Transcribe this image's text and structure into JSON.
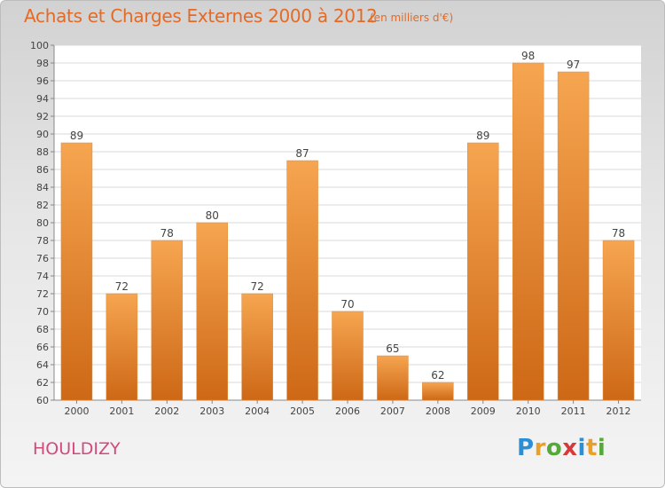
{
  "title": "Achats et Charges Externes 2000 à 2012",
  "subtitle": "(en milliers d'€)",
  "commune": "HOULDIZY",
  "logo": {
    "letters": [
      "P",
      "r",
      "o",
      "x",
      "i",
      "t",
      "i"
    ],
    "colors": [
      "#2a8fd6",
      "#e8a02b",
      "#57a83b",
      "#d63b3b",
      "#2a8fd6",
      "#e8a02b",
      "#57a83b"
    ]
  },
  "colors": {
    "bar_top": "#f6a550",
    "bar_bottom": "#cd6816",
    "accent": "#e46a26"
  },
  "chart_data": {
    "type": "bar",
    "categories": [
      "2000",
      "2001",
      "2002",
      "2003",
      "2004",
      "2005",
      "2006",
      "2007",
      "2008",
      "2009",
      "2010",
      "2011",
      "2012"
    ],
    "values": [
      89,
      72,
      78,
      80,
      72,
      87,
      70,
      65,
      62,
      89,
      98,
      97,
      78
    ],
    "ylim": [
      60,
      100
    ],
    "yticks": [
      60,
      62,
      64,
      66,
      68,
      70,
      72,
      74,
      76,
      78,
      80,
      82,
      84,
      86,
      88,
      90,
      92,
      94,
      96,
      98,
      100
    ],
    "grid": true
  }
}
